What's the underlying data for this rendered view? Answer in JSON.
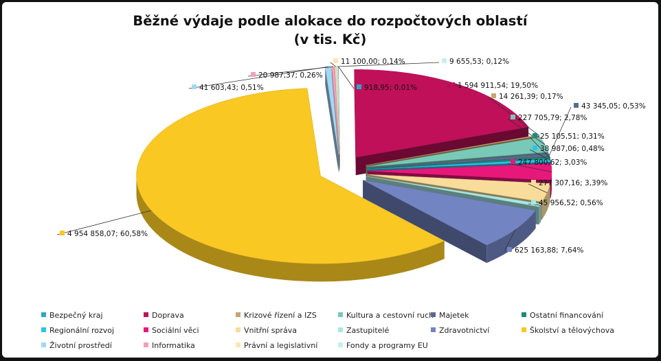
{
  "chart_data": {
    "type": "pie",
    "title_line1": "Běžné výdaje podle alokace do rozpočtových oblastí",
    "title_line2": "(v tis. Kč)",
    "legend_position": "bottom",
    "slices": [
      {
        "name": "Bezpečný kraj",
        "value": 918.95,
        "label": "918,95; 0,01%",
        "color": "#2aa7c8"
      },
      {
        "name": "Doprava",
        "value": 1594911.54,
        "label": "1 594 911,54; 19,50%",
        "color": "#c0105a"
      },
      {
        "name": "Krizové řízení a IZS",
        "value": 14261.39,
        "label": "14 261,39; 0,17%",
        "color": "#c8a470"
      },
      {
        "name": "Kultura a cestovní ruch",
        "value": 227705.79,
        "label": "227 705,79; 2,78%",
        "color": "#79c9b8"
      },
      {
        "name": "Majetek",
        "value": 43345.05,
        "label": "43 345,05; 0,53%",
        "color": "#5a6a8e"
      },
      {
        "name": "Ostatní financování",
        "value": 25105.51,
        "label": "25 105,51; 0,31%",
        "color": "#1a8c7a"
      },
      {
        "name": "Regionální rozvoj",
        "value": 38987.06,
        "label": "38 987,06; 0,48%",
        "color": "#2bc3e6"
      },
      {
        "name": "Sociální věci",
        "value": 247800.62,
        "label": "247 800,62; 3,03%",
        "color": "#e8187a"
      },
      {
        "name": "Vnitřní správa",
        "value": 277307.16,
        "label": "277 307,16; 3,39%",
        "color": "#f8dc9a"
      },
      {
        "name": "Zastupitelé",
        "value": 45956.52,
        "label": "45 956,52; 0,56%",
        "color": "#a6e7e1"
      },
      {
        "name": "Zdravotnictví",
        "value": 625163.88,
        "label": "625 163,88; 7,64%",
        "color": "#7384c2"
      },
      {
        "name": "Školství a tělovýchova",
        "value": 4954858.07,
        "label": "4 954 858,07; 60,58%",
        "color": "#f9c823"
      },
      {
        "name": "Životní prostředí",
        "value": 41603.43,
        "label": "41 603,43; 0,51%",
        "color": "#a3d8f4"
      },
      {
        "name": "Informatika",
        "value": 20987.37,
        "label": "20 987,37; 0,26%",
        "color": "#f2a0b8"
      },
      {
        "name": "Právní a legislativní",
        "value": 11100.0,
        "label": "11 100,00; 0,14%",
        "color": "#fde6b4"
      },
      {
        "name": "Fondy a programy EU",
        "value": 9655.53,
        "label": "9 655,53; 0,12%",
        "color": "#c8efec"
      }
    ]
  }
}
